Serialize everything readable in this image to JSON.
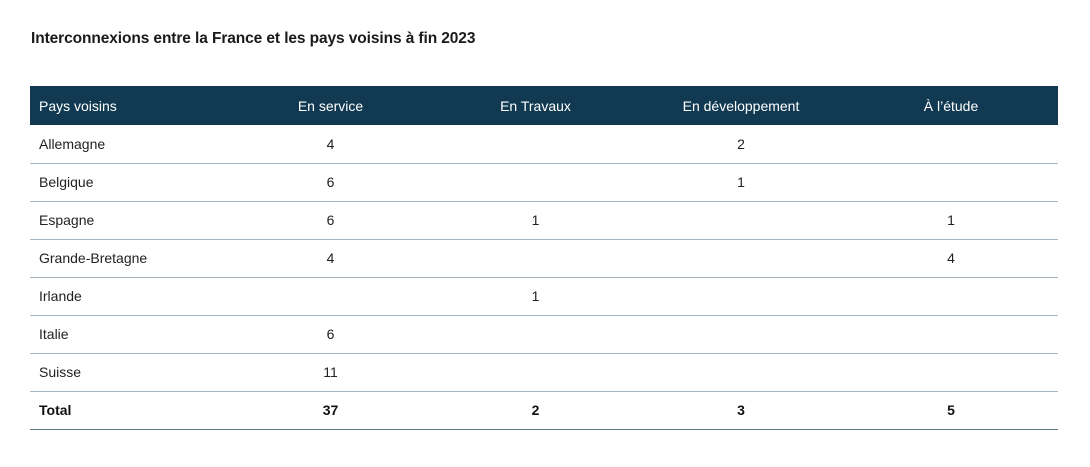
{
  "title": "Interconnexions entre la France et les pays voisins à fin 2023",
  "table": {
    "headers": [
      "Pays voisins",
      "En service",
      "En Travaux",
      "En développement",
      "À l’étude"
    ],
    "rows": [
      [
        "Allemagne",
        "4",
        "",
        "2",
        ""
      ],
      [
        "Belgique",
        "6",
        "",
        "1",
        ""
      ],
      [
        "Espagne",
        "6",
        "1",
        "",
        "1"
      ],
      [
        "Grande-Bretagne",
        "4",
        "",
        "",
        "4"
      ],
      [
        "Irlande",
        "",
        "1",
        "",
        ""
      ],
      [
        "Italie",
        "6",
        "",
        "",
        ""
      ],
      [
        "Suisse",
        "11",
        "",
        "",
        ""
      ]
    ],
    "total": [
      "Total",
      "37",
      "2",
      "3",
      "5"
    ]
  },
  "colors": {
    "header_background": "#113a52",
    "header_text": "#ffffff",
    "row_divider": "#a7b6c0"
  }
}
